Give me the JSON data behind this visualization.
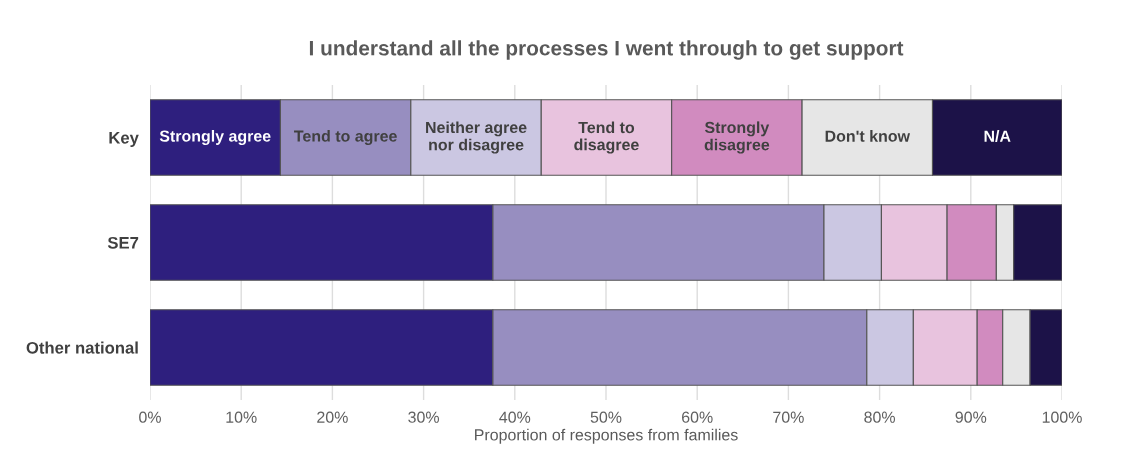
{
  "chart_data": {
    "type": "bar",
    "orientation": "horizontal",
    "stacked": true,
    "title": "I understand all the processes I went through to get support",
    "xlabel": "Proportion of responses from families",
    "categories": [
      "Key",
      "SE7",
      "Other national"
    ],
    "series": [
      {
        "name": "Strongly agree",
        "color": "#2e1f7e",
        "values": [
          14.3,
          37.6,
          37.6
        ]
      },
      {
        "name": "Tend to agree",
        "color": "#978ec0",
        "values": [
          14.3,
          36.3,
          41.0
        ]
      },
      {
        "name": "Neither agree nor disagree",
        "color": "#cbc7e2",
        "values": [
          14.3,
          6.3,
          5.1
        ]
      },
      {
        "name": "Tend to disagree",
        "color": "#e8c3de",
        "values": [
          14.3,
          7.2,
          7.0
        ]
      },
      {
        "name": "Strongly disagree",
        "color": "#d18bbf",
        "values": [
          14.3,
          5.4,
          2.8
        ]
      },
      {
        "name": "Don't know",
        "color": "#e6e6e6",
        "values": [
          14.3,
          1.9,
          3.0
        ]
      },
      {
        "name": "N/A",
        "color": "#1c1248",
        "values": [
          14.2,
          5.3,
          3.5
        ]
      }
    ],
    "xlim": [
      0,
      100
    ],
    "xticks": [
      {
        "value": 0,
        "label": "0%"
      },
      {
        "value": 10,
        "label": "10%"
      },
      {
        "value": 20,
        "label": "20%"
      },
      {
        "value": 30,
        "label": "30%"
      },
      {
        "value": 40,
        "label": "40%"
      },
      {
        "value": 50,
        "label": "50%"
      },
      {
        "value": 60,
        "label": "60%"
      },
      {
        "value": 70,
        "label": "70%"
      },
      {
        "value": 80,
        "label": "80%"
      },
      {
        "value": 90,
        "label": "90%"
      },
      {
        "value": 100,
        "label": "100%"
      }
    ],
    "grid": "x",
    "legend": false
  }
}
